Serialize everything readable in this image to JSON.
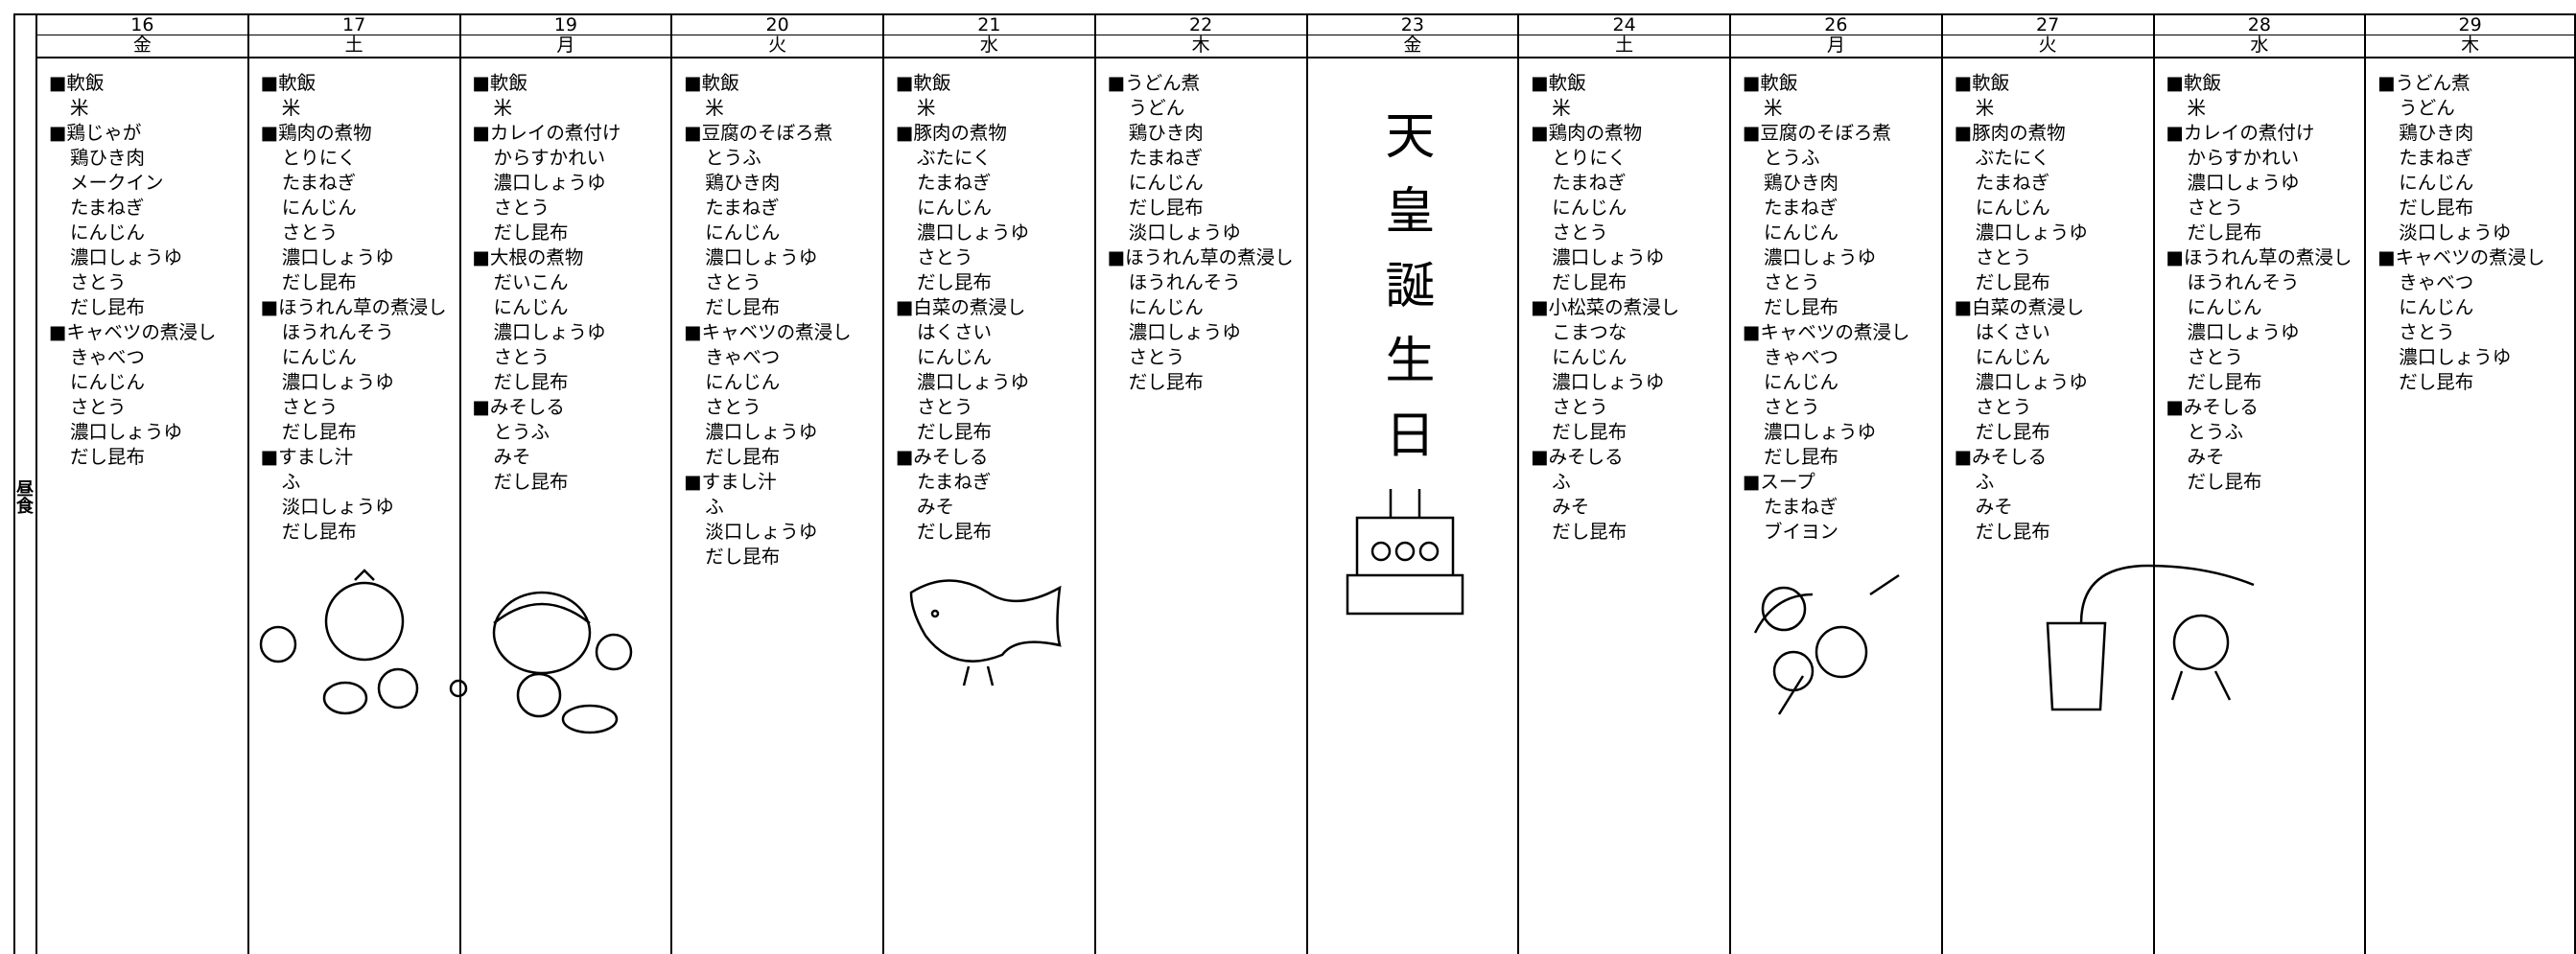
{
  "meal_label": "昼食",
  "days": [
    {
      "date": "16",
      "weekday": "金",
      "items": [
        "■軟飯",
        "米",
        "■鶏じゃが",
        "鶏ひき肉",
        "メークイン",
        "たまねぎ",
        "にんじん",
        "濃口しょうゆ",
        "さとう",
        "だし昆布",
        "■キャベツの煮浸し",
        "きゃべつ",
        "にんじん",
        "さとう",
        "濃口しょうゆ",
        "だし昆布"
      ]
    },
    {
      "date": "17",
      "weekday": "土",
      "items": [
        "■軟飯",
        "米",
        "■鶏肉の煮物",
        "とりにく",
        "たまねぎ",
        "にんじん",
        "さとう",
        "濃口しょうゆ",
        "だし昆布",
        "■ほうれん草の煮浸し",
        "ほうれんそう",
        "にんじん",
        "濃口しょうゆ",
        "さとう",
        "だし昆布",
        "■すまし汁",
        "ふ",
        "淡口しょうゆ",
        "だし昆布"
      ]
    },
    {
      "date": "19",
      "weekday": "月",
      "items": [
        "■軟飯",
        "米",
        "■カレイの煮付け",
        "からすかれい",
        "濃口しょうゆ",
        "さとう",
        "だし昆布",
        "■大根の煮物",
        "だいこん",
        "にんじん",
        "濃口しょうゆ",
        "さとう",
        "だし昆布",
        "■みそしる",
        "とうふ",
        "みそ",
        "だし昆布"
      ]
    },
    {
      "date": "20",
      "weekday": "火",
      "items": [
        "■軟飯",
        "米",
        "■豆腐のそぼろ煮",
        "とうふ",
        "鶏ひき肉",
        "たまねぎ",
        "にんじん",
        "濃口しょうゆ",
        "さとう",
        "だし昆布",
        "■キャベツの煮浸し",
        "きゃべつ",
        "にんじん",
        "さとう",
        "濃口しょうゆ",
        "だし昆布",
        "■すまし汁",
        "ふ",
        "淡口しょうゆ",
        "だし昆布"
      ]
    },
    {
      "date": "21",
      "weekday": "水",
      "items": [
        "■軟飯",
        "米",
        "■豚肉の煮物",
        "ぶたにく",
        "たまねぎ",
        "にんじん",
        "濃口しょうゆ",
        "さとう",
        "だし昆布",
        "■白菜の煮浸し",
        "はくさい",
        "にんじん",
        "濃口しょうゆ",
        "さとう",
        "だし昆布",
        "■みそしる",
        "たまねぎ",
        "みそ",
        "だし昆布"
      ]
    },
    {
      "date": "22",
      "weekday": "木",
      "items": [
        "■うどん煮",
        "うどん",
        "鶏ひき肉",
        "たまねぎ",
        "にんじん",
        "だし昆布",
        "淡口しょうゆ",
        "■ほうれん草の煮浸し",
        "ほうれんそう",
        "にんじん",
        "濃口しょうゆ",
        "さとう",
        "だし昆布"
      ]
    },
    {
      "date": "23",
      "weekday": "金",
      "holiday": "天皇誕生日"
    },
    {
      "date": "24",
      "weekday": "土",
      "items": [
        "■軟飯",
        "米",
        "■鶏肉の煮物",
        "とりにく",
        "たまねぎ",
        "にんじん",
        "さとう",
        "濃口しょうゆ",
        "だし昆布",
        "■小松菜の煮浸し",
        "こまつな",
        "にんじん",
        "濃口しょうゆ",
        "さとう",
        "だし昆布",
        "■みそしる",
        "ふ",
        "みそ",
        "だし昆布"
      ]
    },
    {
      "date": "26",
      "weekday": "月",
      "items": [
        "■軟飯",
        "米",
        "■豆腐のそぼろ煮",
        "とうふ",
        "鶏ひき肉",
        "たまねぎ",
        "にんじん",
        "濃口しょうゆ",
        "さとう",
        "だし昆布",
        "■キャベツの煮浸し",
        "きゃべつ",
        "にんじん",
        "さとう",
        "濃口しょうゆ",
        "だし昆布",
        "■スープ",
        "たまねぎ",
        "ブイヨン"
      ]
    },
    {
      "date": "27",
      "weekday": "火",
      "items": [
        "■軟飯",
        "米",
        "■豚肉の煮物",
        "ぶたにく",
        "たまねぎ",
        "にんじん",
        "濃口しょうゆ",
        "さとう",
        "だし昆布",
        "■白菜の煮浸し",
        "はくさい",
        "にんじん",
        "濃口しょうゆ",
        "さとう",
        "だし昆布",
        "■みそしる",
        "ふ",
        "みそ",
        "だし昆布"
      ]
    },
    {
      "date": "28",
      "weekday": "水",
      "items": [
        "■軟飯",
        "米",
        "■カレイの煮付け",
        "からすかれい",
        "濃口しょうゆ",
        "さとう",
        "だし昆布",
        "■ほうれん草の煮浸し",
        "ほうれんそう",
        "にんじん",
        "濃口しょうゆ",
        "さとう",
        "だし昆布",
        "■みそしる",
        "とうふ",
        "みそ",
        "だし昆布"
      ]
    },
    {
      "date": "29",
      "weekday": "木",
      "items": [
        "■うどん煮",
        "うどん",
        "鶏ひき肉",
        "たまねぎ",
        "にんじん",
        "だし昆布",
        "淡口しょうゆ",
        "■キャベツの煮浸し",
        "きゃべつ",
        "にんじん",
        "さとう",
        "濃口しょうゆ",
        "だし昆布"
      ]
    }
  ]
}
